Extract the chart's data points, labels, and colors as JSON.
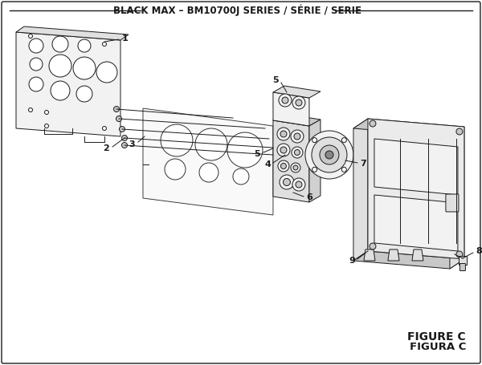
{
  "title": "BLACK MAX – BM10700J SERIES / SÉRIE / SERIE",
  "figure_label": "FIGURE C",
  "figura_label": "FIGURA C",
  "bg_color": "#ffffff",
  "lc": "#1a1a1a",
  "title_fontsize": 8.5,
  "label_fontsize": 8,
  "fig_label_fontsize": 10
}
